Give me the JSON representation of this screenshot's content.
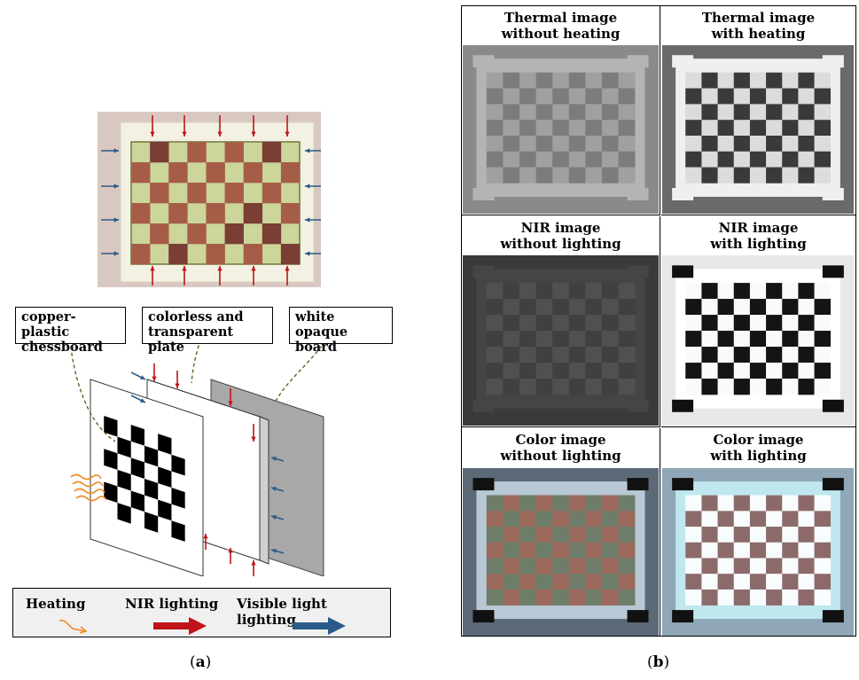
{
  "panel_a": {
    "caption": "a",
    "callouts": [
      {
        "line1": "copper-plastic",
        "line2": "chessboard"
      },
      {
        "line1": "colorless and",
        "line2": "transparent plate"
      },
      {
        "line1": "white opaque",
        "line2": "board"
      }
    ],
    "legend": {
      "heating": "Heating",
      "nir": "NIR lighting",
      "visible": "Visible light lighting"
    },
    "colors": {
      "heating": "#f08a24",
      "nir": "#c01418",
      "visible": "#2a5a8a",
      "plate_bg": "#ccd59a",
      "copper": "#a65d48"
    }
  },
  "panel_b": {
    "caption": "b",
    "cells": [
      {
        "line1": "Thermal image",
        "line2": "without  heating",
        "kind": "thermal-off"
      },
      {
        "line1": "Thermal image",
        "line2": "with  heating",
        "kind": "thermal-on"
      },
      {
        "line1": "NIR image",
        "line2": "without  lighting",
        "kind": "nir-off"
      },
      {
        "line1": "NIR image",
        "line2": "with  lighting",
        "kind": "nir-on"
      },
      {
        "line1": "Color image",
        "line2": "without  lighting",
        "kind": "color-off"
      },
      {
        "line1": "Color image",
        "line2": "with  lighting",
        "kind": "color-on"
      }
    ]
  }
}
